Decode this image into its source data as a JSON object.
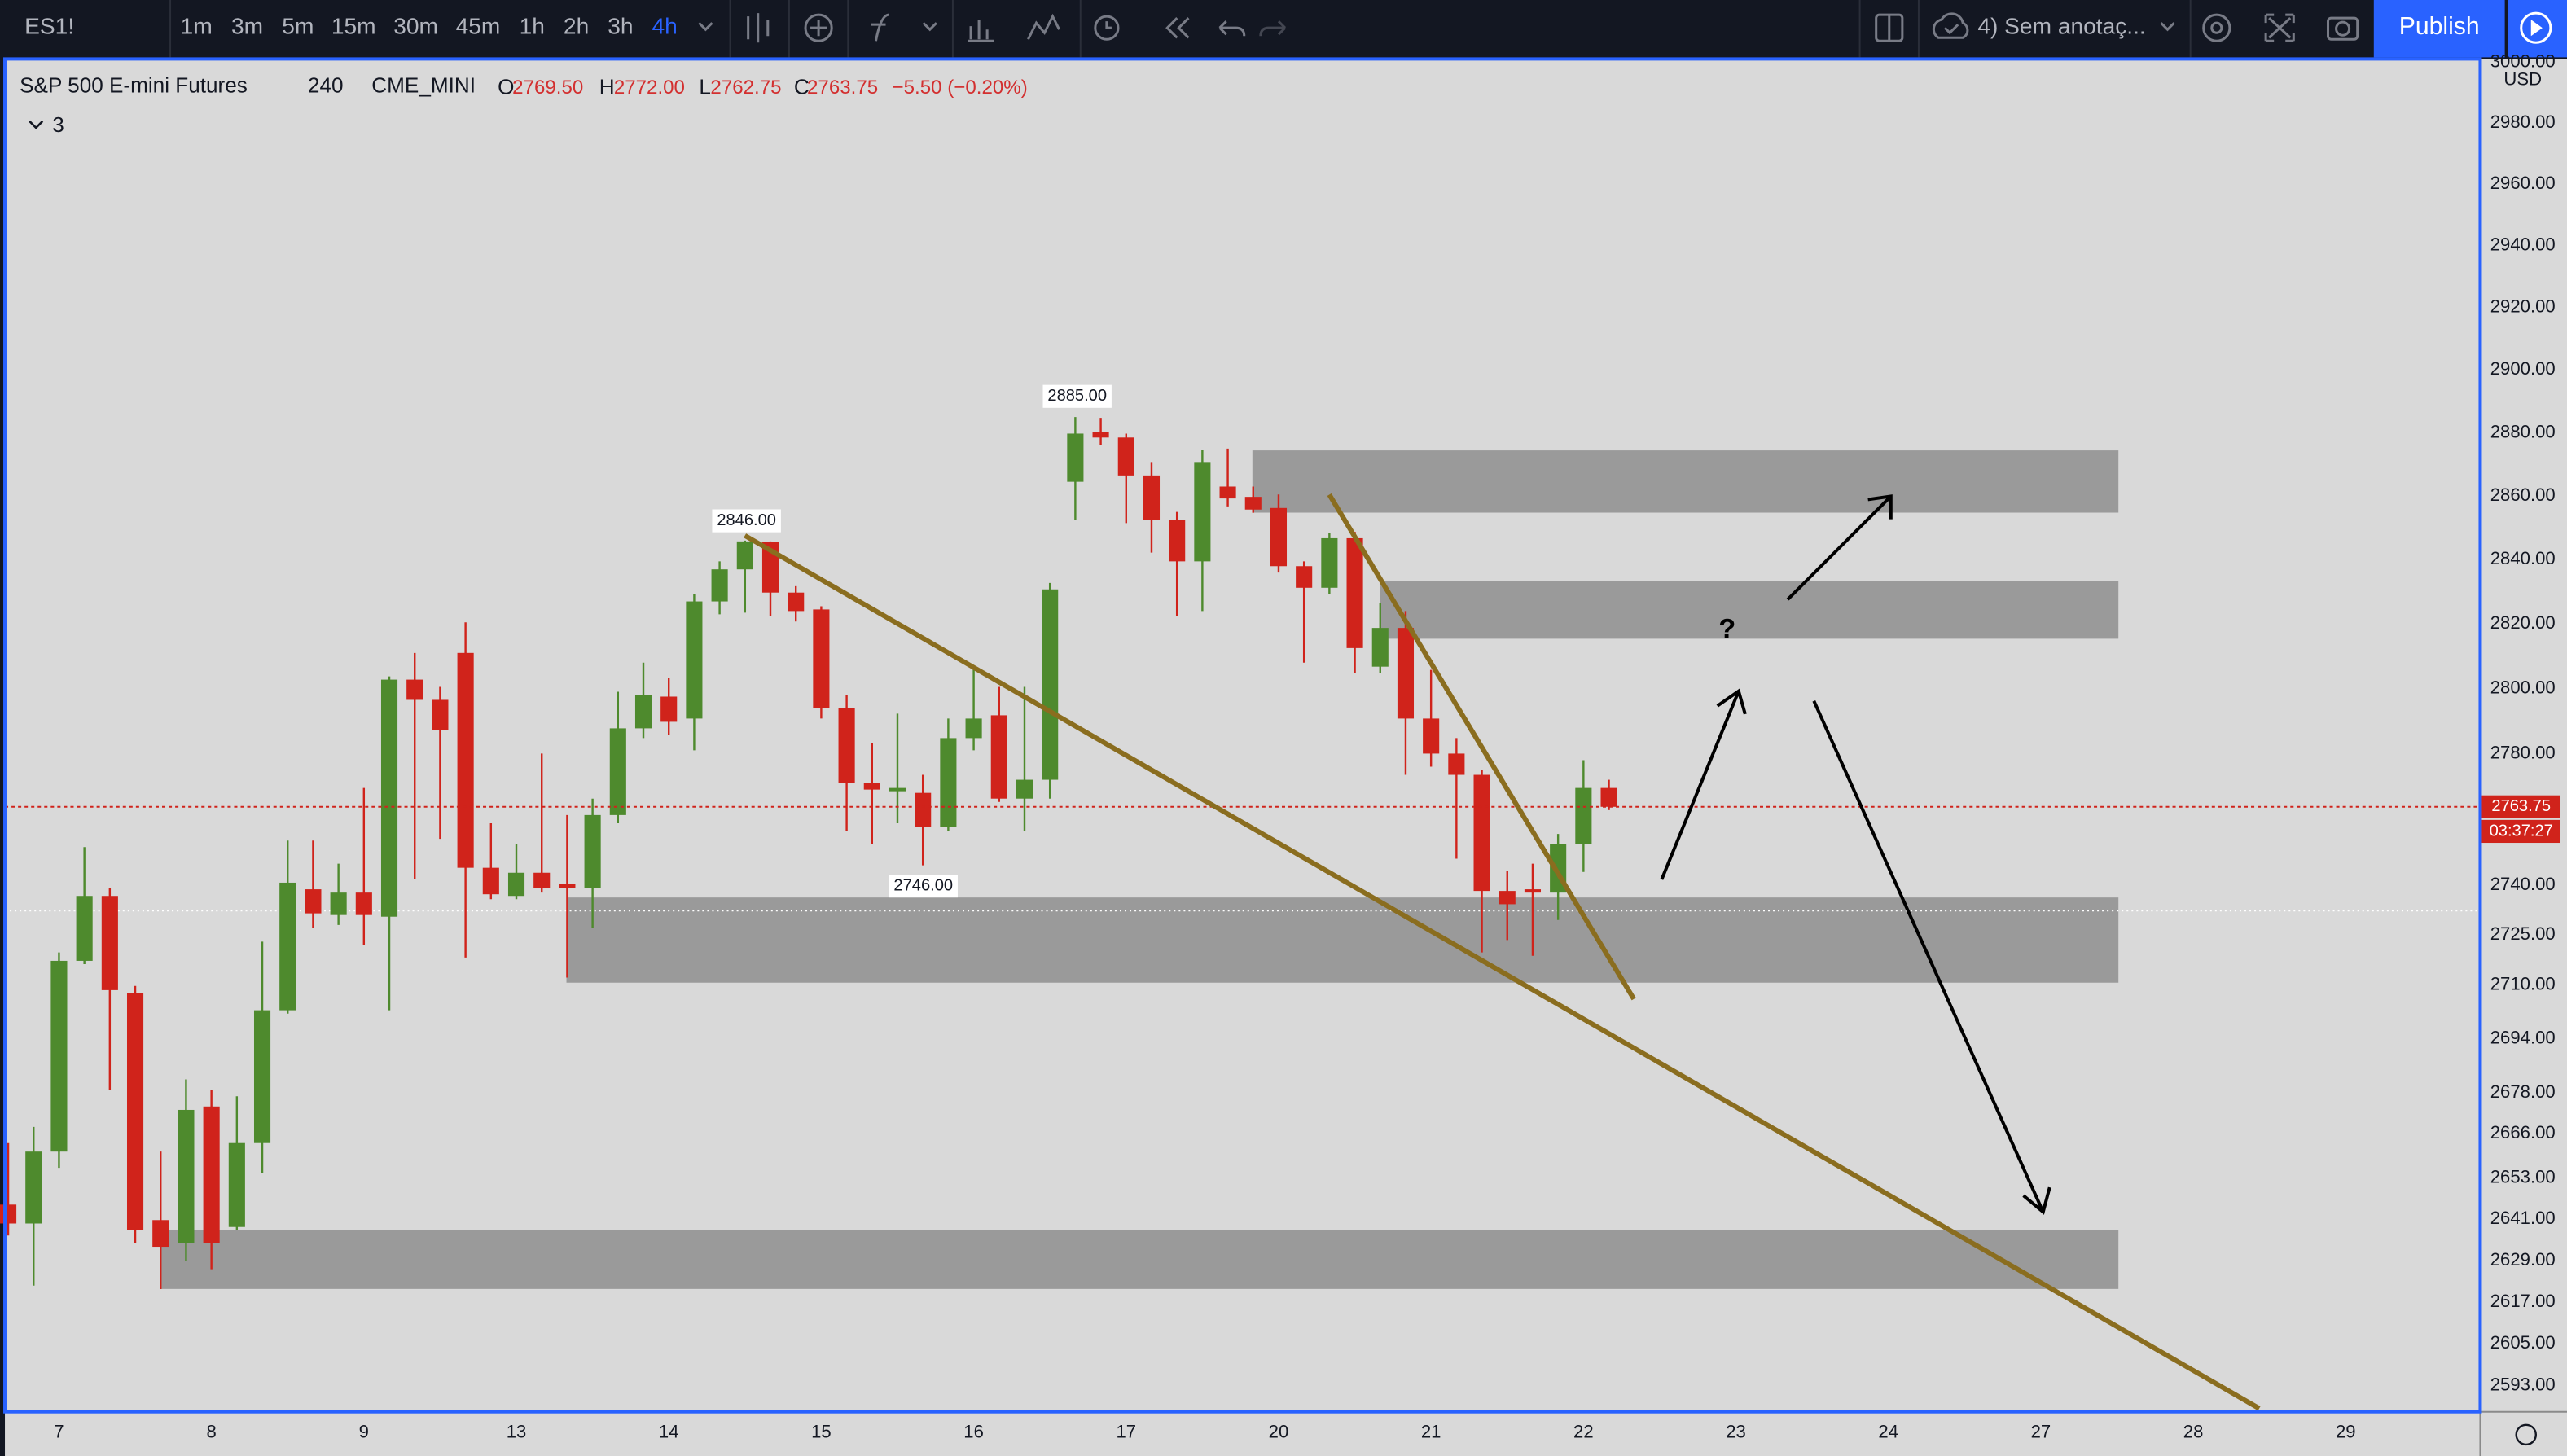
{
  "toolbar": {
    "symbol": "ES1!",
    "intervals": [
      {
        "label": "1m"
      },
      {
        "label": "3m"
      },
      {
        "label": "5m"
      },
      {
        "label": "15m"
      },
      {
        "label": "30m"
      },
      {
        "label": "45m"
      },
      {
        "label": "1h"
      },
      {
        "label": "2h"
      },
      {
        "label": "3h"
      },
      {
        "label": "4h",
        "active": true
      }
    ],
    "layout_name": "4) Sem anotaç...",
    "publish": "Publish"
  },
  "legend": {
    "name": "S&P 500 E-mini Futures",
    "interval": "240",
    "exchange": "CME_MINI",
    "open_label": "O",
    "open": "2769.50",
    "high_label": "H",
    "high": "2772.00",
    "low_label": "L",
    "low": "2762.75",
    "close_label": "C",
    "close": "2763.75",
    "change": "−5.50 (−0.20%)",
    "indicators": "3"
  },
  "chart_data": {
    "type": "candlestick",
    "log_scale": true,
    "grid": false,
    "up_color": "#4e8a2d",
    "down_color": "#d0231b",
    "currency": "USD",
    "countdown": "03:37:27",
    "categories": [
      null,
      null,
      "7",
      null,
      null,
      null,
      null,
      null,
      "8",
      null,
      null,
      null,
      null,
      null,
      "9",
      null,
      null,
      null,
      null,
      null,
      "13",
      null,
      null,
      null,
      null,
      null,
      "14",
      null,
      null,
      null,
      null,
      null,
      "15",
      null,
      null,
      null,
      null,
      null,
      "16",
      null,
      null,
      null,
      null,
      null,
      "17",
      null,
      null,
      null,
      null,
      null,
      "20",
      null,
      null,
      null,
      null,
      null,
      "21",
      null,
      null,
      null,
      null,
      null,
      "22",
      null,
      null,
      null,
      null,
      null,
      "23",
      null,
      null,
      null,
      null,
      null,
      "24",
      null,
      null,
      null,
      null,
      null,
      "27",
      null,
      null,
      null,
      null,
      null,
      "28",
      null,
      null,
      null,
      null,
      null,
      "29",
      null,
      null,
      null,
      null
    ],
    "open": [
      2645.25,
      2639.75,
      2660.75,
      2717.25,
      2736.75,
      2707.5,
      2640.75,
      2634,
      2674,
      2638.75,
      2663.25,
      2702.5,
      2738.75,
      2731,
      2737.75,
      2730.5,
      2802.75,
      2796.5,
      2811,
      2745.25,
      2736.75,
      2743.75,
      2740.25,
      2739.25,
      2761.25,
      2787.75,
      2797.5,
      2790.75,
      2827,
      2837,
      2845.5,
      2829.75,
      2824.5,
      2794,
      2771,
      2768.5,
      2768,
      2757.75,
      2784.75,
      2791.75,
      2766.25,
      2772,
      2864.5,
      2880.25,
      2878.5,
      2866.5,
      2852.5,
      2839.5,
      2863,
      2859.75,
      2856.25,
      2838,
      2831.25,
      2846.75,
      2806.75,
      2818.75,
      2790.75,
      2780,
      2773.5,
      2738.25,
      2738.75,
      2737.75,
      2752.5,
      2769.5,
      null,
      null,
      null,
      null,
      null,
      null,
      null,
      null,
      null,
      null,
      null,
      null,
      null,
      null,
      null,
      null,
      null,
      null,
      null,
      null,
      null,
      null,
      null,
      null,
      null,
      null,
      null,
      null,
      null,
      null,
      null,
      null,
      null
    ],
    "high": [
      2663.25,
      2668,
      2719.75,
      2751.5,
      2739.25,
      2709.75,
      2660.75,
      2682,
      2679,
      2677,
      2723,
      2753.5,
      2753.5,
      2746.5,
      2769.5,
      2803.75,
      2811,
      2800.5,
      2820.5,
      2758.75,
      2752.5,
      2780,
      2761.25,
      2766.25,
      2799,
      2808,
      2803.25,
      2829.25,
      2839.5,
      2846,
      2845.75,
      2831.75,
      2825.5,
      2798,
      2783.25,
      2792.25,
      2773.5,
      2790.75,
      2807,
      2800.5,
      2800.5,
      2832.75,
      2885,
      2884.75,
      2879.75,
      2870.75,
      2855,
      2874.5,
      2875,
      2863,
      2860.5,
      2839.5,
      2848.5,
      2848.75,
      2826.5,
      2824,
      2805.75,
      2784.75,
      2775,
      2744.25,
      2746.5,
      2755.5,
      2778,
      2772,
      null,
      null,
      null,
      null,
      null,
      null,
      null,
      null,
      null,
      null,
      null,
      null,
      null,
      null,
      null,
      null,
      null,
      null,
      null,
      null,
      null,
      null,
      null,
      null,
      null,
      null,
      null,
      null,
      null,
      null,
      null,
      null,
      null
    ],
    "low": [
      2636.25,
      2621.75,
      2656,
      2716.25,
      2679,
      2634,
      2620.75,
      2629,
      2626.5,
      2637.75,
      2654.5,
      2701.5,
      2727,
      2728,
      2722,
      2702.5,
      2741.75,
      2754,
      2718.25,
      2735.75,
      2735.75,
      2737.75,
      2712.25,
      2727,
      2758.75,
      2784.75,
      2785.75,
      2781,
      2823,
      2823.5,
      2822.5,
      2820.75,
      2790.75,
      2756.5,
      2752.5,
      2758.75,
      2746,
      2756.5,
      2781,
      2765.25,
      2756.5,
      2766.25,
      2852.5,
      2876,
      2851.5,
      2842.25,
      2822.5,
      2824,
      2856.75,
      2854.75,
      2836,
      2808,
      2829.25,
      2804.75,
      2804.75,
      2773.5,
      2776,
      2748,
      2719.75,
      2723.5,
      2718.75,
      2729.5,
      2744,
      2762.75,
      null,
      null,
      null,
      null,
      null,
      null,
      null,
      null,
      null,
      null,
      null,
      null,
      null,
      null,
      null,
      null,
      null,
      null,
      null,
      null,
      null,
      null,
      null,
      null,
      null,
      null,
      null,
      null,
      null,
      null,
      null,
      null,
      null
    ],
    "close": [
      2639.75,
      2660.75,
      2717.25,
      2736.75,
      2708.5,
      2637.75,
      2633,
      2673,
      2634,
      2663.25,
      2702.5,
      2740.75,
      2731.5,
      2737.75,
      2731,
      2802.75,
      2796.5,
      2787.25,
      2745.25,
      2737.25,
      2743.75,
      2739.25,
      2739.25,
      2761.25,
      2787.75,
      2798,
      2789.75,
      2827,
      2837,
      2845.75,
      2829.75,
      2824,
      2794,
      2771,
      2769,
      2769.5,
      2757.75,
      2784.75,
      2790.75,
      2766.25,
      2772,
      2830.75,
      2879.75,
      2878.5,
      2866.5,
      2852.5,
      2839.5,
      2870.75,
      2859.25,
      2855.75,
      2838,
      2831.25,
      2846.75,
      2812.5,
      2818.75,
      2790.75,
      2780,
      2773.5,
      2738.25,
      2734.25,
      2737.75,
      2752.5,
      2769.5,
      2763.75,
      null,
      null,
      null,
      null,
      null,
      null,
      null,
      null,
      null,
      null,
      null,
      null,
      null,
      null,
      null,
      null,
      null,
      null,
      null,
      null,
      null,
      null,
      null,
      null,
      null,
      null,
      null,
      null,
      null,
      null,
      null,
      null,
      null
    ],
    "ylim": [
      2586.5,
      3000
    ],
    "yticks": [
      {
        "value": 3000,
        "label": "3000.00"
      },
      {
        "value": 2980,
        "label": "2980.00"
      },
      {
        "value": 2960,
        "label": "2960.00"
      },
      {
        "value": 2940,
        "label": "2940.00"
      },
      {
        "value": 2920,
        "label": "2920.00"
      },
      {
        "value": 2900,
        "label": "2900.00"
      },
      {
        "value": 2880,
        "label": "2880.00"
      },
      {
        "value": 2860,
        "label": "2860.00"
      },
      {
        "value": 2840,
        "label": "2840.00"
      },
      {
        "value": 2820,
        "label": "2820.00"
      },
      {
        "value": 2800,
        "label": "2800.00"
      },
      {
        "value": 2780,
        "label": "2780.00"
      },
      {
        "value": 2740,
        "label": "2740.00"
      },
      {
        "value": 2725,
        "label": "2725.00"
      },
      {
        "value": 2710,
        "label": "2710.00"
      },
      {
        "value": 2694,
        "label": "2694.00"
      },
      {
        "value": 2678,
        "label": "2678.00"
      },
      {
        "value": 2666,
        "label": "2666.00"
      },
      {
        "value": 2653,
        "label": "2653.00"
      },
      {
        "value": 2641,
        "label": "2641.00"
      },
      {
        "value": 2629,
        "label": "2629.00"
      },
      {
        "value": 2617,
        "label": "2617.00"
      },
      {
        "value": 2605,
        "label": "2605.00"
      },
      {
        "value": 2593,
        "label": "2593.00"
      }
    ],
    "annotations": [
      {
        "text": "2885.00"
      },
      {
        "text": "2846.00"
      },
      {
        "text": "2746.00"
      },
      {
        "text": "?"
      }
    ]
  }
}
